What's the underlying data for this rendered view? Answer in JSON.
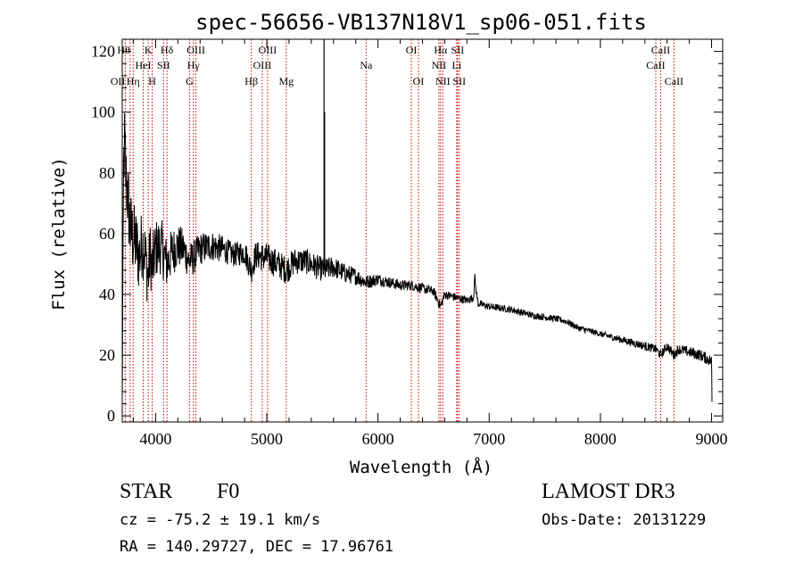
{
  "chart_data": {
    "type": "line",
    "title": "spec-56656-VB137N18V1_sp06-051.fits",
    "xlabel": "Wavelength (Å)",
    "ylabel": "Flux (relative)",
    "xlim": [
      3700,
      9100
    ],
    "ylim": [
      -2,
      124
    ],
    "xticks": [
      4000,
      5000,
      6000,
      7000,
      8000,
      9000
    ],
    "yticks": [
      0,
      20,
      40,
      60,
      80,
      100,
      120
    ],
    "xtick_labels": [
      "4000",
      "5000",
      "6000",
      "7000",
      "8000",
      "9000"
    ],
    "ytick_labels": [
      "0",
      "20",
      "40",
      "60",
      "80",
      "100",
      "120"
    ],
    "series": [
      {
        "name": "flux",
        "anchors": [
          [
            3700,
            5
          ],
          [
            3705,
            45
          ],
          [
            3712,
            80
          ],
          [
            3720,
            90
          ],
          [
            3735,
            78
          ],
          [
            3750,
            72
          ],
          [
            3770,
            62
          ],
          [
            3800,
            58
          ],
          [
            3830,
            56
          ],
          [
            3850,
            52
          ],
          [
            3880,
            57
          ],
          [
            3900,
            55
          ],
          [
            3933,
            45
          ],
          [
            3950,
            54
          ],
          [
            3968,
            48
          ],
          [
            4000,
            55
          ],
          [
            4050,
            56
          ],
          [
            4101,
            50
          ],
          [
            4150,
            54
          ],
          [
            4200,
            56
          ],
          [
            4250,
            55
          ],
          [
            4300,
            51
          ],
          [
            4340,
            52
          ],
          [
            4400,
            55
          ],
          [
            4500,
            56
          ],
          [
            4600,
            55
          ],
          [
            4700,
            53
          ],
          [
            4800,
            54
          ],
          [
            4861,
            48
          ],
          [
            4900,
            53
          ],
          [
            5000,
            52
          ],
          [
            5100,
            50
          ],
          [
            5175,
            48
          ],
          [
            5250,
            51
          ],
          [
            5350,
            51
          ],
          [
            5450,
            49
          ],
          [
            5520,
            48
          ],
          [
            5600,
            49
          ],
          [
            5700,
            47
          ],
          [
            5800,
            46
          ],
          [
            5893,
            44
          ],
          [
            6000,
            45
          ],
          [
            6100,
            44
          ],
          [
            6200,
            43
          ],
          [
            6300,
            43
          ],
          [
            6400,
            42
          ],
          [
            6500,
            41
          ],
          [
            6563,
            36
          ],
          [
            6600,
            40
          ],
          [
            6700,
            39
          ],
          [
            6800,
            38
          ],
          [
            6860,
            39
          ],
          [
            6870,
            46
          ],
          [
            6880,
            42
          ],
          [
            6900,
            37
          ],
          [
            7000,
            36
          ],
          [
            7200,
            35
          ],
          [
            7400,
            33
          ],
          [
            7600,
            32
          ],
          [
            7700,
            31
          ],
          [
            7800,
            29
          ],
          [
            7900,
            28
          ],
          [
            8000,
            27
          ],
          [
            8100,
            26
          ],
          [
            8200,
            25
          ],
          [
            8300,
            24
          ],
          [
            8400,
            23
          ],
          [
            8500,
            22
          ],
          [
            8542,
            20
          ],
          [
            8600,
            23
          ],
          [
            8662,
            20
          ],
          [
            8700,
            22
          ],
          [
            8800,
            21
          ],
          [
            8900,
            20
          ],
          [
            8950,
            19
          ],
          [
            9000,
            18
          ],
          [
            9005,
            1
          ]
        ],
        "spikes": [
          {
            "x": 5515,
            "y": 124
          },
          {
            "x": 5520,
            "y": 100
          }
        ],
        "noise": [
          [
            3700,
            14
          ],
          [
            4000,
            10
          ],
          [
            4300,
            6
          ],
          [
            4700,
            4
          ],
          [
            5000,
            5
          ],
          [
            5500,
            4
          ],
          [
            6000,
            2
          ],
          [
            6600,
            1.5
          ],
          [
            7000,
            1.2
          ],
          [
            8000,
            1
          ],
          [
            9000,
            2
          ]
        ]
      }
    ],
    "lines": [
      {
        "x": 3727,
        "labels": [
          "OII"
        ],
        "row": 2,
        "align": "end"
      },
      {
        "x": 3771,
        "labels": [
          "Hθ"
        ],
        "row": 0,
        "align": "end"
      },
      {
        "x": 3798,
        "labels": [
          "Hη"
        ],
        "row": 2,
        "align": "middle"
      },
      {
        "x": 3889,
        "labels": [
          "HeI"
        ],
        "row": 1,
        "align": "middle"
      },
      {
        "x": 3934,
        "labels": [
          "K"
        ],
        "row": 0,
        "align": "middle"
      },
      {
        "x": 3969,
        "labels": [
          "H"
        ],
        "row": 2,
        "align": "middle"
      },
      {
        "x": 4072,
        "labels": [
          "SII"
        ],
        "row": 1,
        "align": "middle"
      },
      {
        "x": 4102,
        "labels": [
          "Hδ"
        ],
        "row": 0,
        "align": "middle"
      },
      {
        "x": 4305,
        "labels": [
          "G"
        ],
        "row": 2,
        "align": "middle"
      },
      {
        "x": 4340,
        "labels": [
          "Hγ"
        ],
        "row": 1,
        "align": "middle"
      },
      {
        "x": 4363,
        "labels": [
          "OIII"
        ],
        "row": 0,
        "align": "middle"
      },
      {
        "x": 4861,
        "labels": [
          "Hβ"
        ],
        "row": 2,
        "align": "middle"
      },
      {
        "x": 4959,
        "labels": [
          "OIII"
        ],
        "row": 1,
        "align": "middle"
      },
      {
        "x": 5007,
        "labels": [
          "OIII"
        ],
        "row": 0,
        "align": "middle"
      },
      {
        "x": 5175,
        "labels": [
          "Mg"
        ],
        "row": 2,
        "align": "middle"
      },
      {
        "x": 5893,
        "labels": [
          "Na"
        ],
        "row": 1,
        "align": "middle"
      },
      {
        "x": 6300,
        "labels": [
          "OI"
        ],
        "row": 0,
        "align": "middle"
      },
      {
        "x": 6364,
        "labels": [
          "OI"
        ],
        "row": 2,
        "align": "middle"
      },
      {
        "x": 6548,
        "labels": [
          "NII"
        ],
        "row": 1,
        "align": "middle"
      },
      {
        "x": 6563,
        "labels": [
          "Hα"
        ],
        "row": 0,
        "align": "middle"
      },
      {
        "x": 6583,
        "labels": [
          "NII"
        ],
        "row": 2,
        "align": "middle"
      },
      {
        "x": 6708,
        "labels": [
          "Li"
        ],
        "row": 1,
        "align": "middle"
      },
      {
        "x": 6716,
        "labels": [
          "SII"
        ],
        "row": 0,
        "align": "middle"
      },
      {
        "x": 6731,
        "labels": [
          "SII"
        ],
        "row": 2,
        "align": "middle"
      },
      {
        "x": 8498,
        "labels": [
          "CaII"
        ],
        "row": 1,
        "align": "middle"
      },
      {
        "x": 8542,
        "labels": [
          "CaII"
        ],
        "row": 0,
        "align": "middle"
      },
      {
        "x": 8662,
        "labels": [
          "CaII"
        ],
        "row": 2,
        "align": "middle"
      }
    ]
  },
  "info": {
    "object_class": "STAR",
    "subclass": "F0",
    "survey": "LAMOST DR3",
    "redshift": "cz = -75.2 ± 19.1 km/s",
    "obs_date": "Obs-Date: 20131229",
    "coords": "RA = 140.29727, DEC =  17.96761"
  },
  "colors": {
    "line_marker": "#cc0000",
    "spectrum": "#000000",
    "axis": "#000000",
    "background": "#ffffff"
  }
}
